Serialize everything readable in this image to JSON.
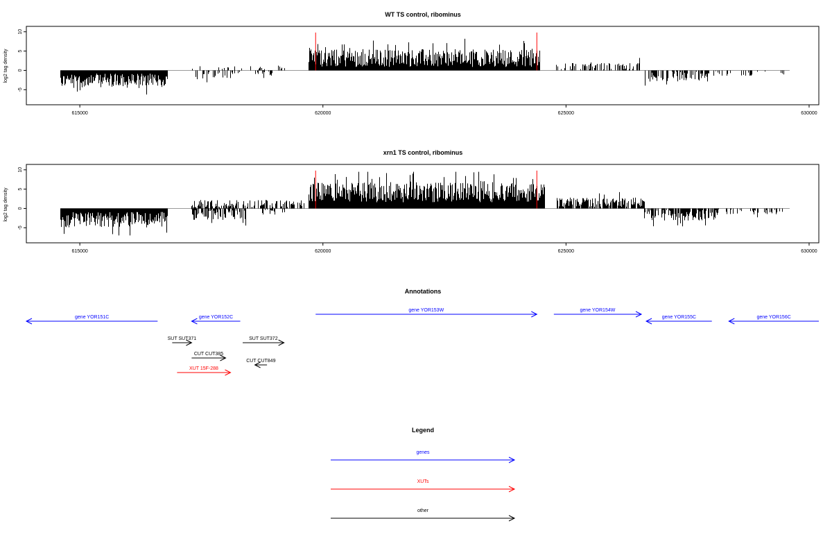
{
  "colors": {
    "gene": "#0000ff",
    "xut": "#ff0000",
    "other": "#000000",
    "marker": "#ff0000",
    "axis": "#000000",
    "zero": "#999999"
  },
  "chart_data": [
    {
      "type": "bar",
      "title": "WT TS control, ribominus",
      "xlabel": "",
      "ylabel": "log2 tag density",
      "xlim": [
        613900,
        630200
      ],
      "ylim": [
        -8,
        10.5
      ],
      "xticks": [
        615000,
        620000,
        625000,
        630000
      ],
      "xtick_labels": [
        "615000",
        "620000",
        "625000",
        "630000"
      ],
      "yticks": [
        10,
        5,
        0,
        -5
      ],
      "ytick_labels": [
        "10",
        "5",
        "0",
        "-5"
      ],
      "markers_x": [
        619850,
        624400
      ],
      "segments": [
        {
          "from": 614600,
          "to": 616800,
          "sign": -1,
          "mean": 2.6,
          "spread": 1.8,
          "density": 1.0
        },
        {
          "from": 617300,
          "to": 618300,
          "sign": -1,
          "mean": 1.2,
          "spread": 1.0,
          "density": 0.35
        },
        {
          "from": 617300,
          "to": 619200,
          "sign": 1,
          "mean": 0.6,
          "spread": 0.5,
          "density": 0.15
        },
        {
          "from": 618600,
          "to": 619000,
          "sign": -1,
          "mean": 0.8,
          "spread": 0.7,
          "density": 0.3
        },
        {
          "from": 619700,
          "to": 624450,
          "sign": 1,
          "mean": 3.2,
          "spread": 2.3,
          "density": 1.0
        },
        {
          "from": 624800,
          "to": 626500,
          "sign": 1,
          "mean": 1.1,
          "spread": 1.0,
          "density": 0.45
        },
        {
          "from": 626600,
          "to": 627900,
          "sign": -1,
          "mean": 1.6,
          "spread": 1.3,
          "density": 0.6
        },
        {
          "from": 627900,
          "to": 629500,
          "sign": -1,
          "mean": 0.8,
          "spread": 0.6,
          "density": 0.15
        }
      ]
    },
    {
      "type": "bar",
      "title": "xrn1 TS control, ribominus",
      "xlabel": "",
      "ylabel": "log2 tag density",
      "xlim": [
        613900,
        630200
      ],
      "ylim": [
        -8,
        10.5
      ],
      "xticks": [
        615000,
        620000,
        625000,
        630000
      ],
      "xtick_labels": [
        "615000",
        "620000",
        "625000",
        "630000"
      ],
      "yticks": [
        10,
        5,
        0,
        -5
      ],
      "ytick_labels": [
        "10",
        "5",
        "0",
        "-5"
      ],
      "markers_x": [
        619850,
        624400
      ],
      "segments": [
        {
          "from": 614600,
          "to": 616800,
          "sign": -1,
          "mean": 2.9,
          "spread": 2.0,
          "density": 1.0
        },
        {
          "from": 617300,
          "to": 618400,
          "sign": -1,
          "mean": 1.6,
          "spread": 1.4,
          "density": 0.7
        },
        {
          "from": 617300,
          "to": 619600,
          "sign": 1,
          "mean": 1.2,
          "spread": 1.0,
          "density": 0.55
        },
        {
          "from": 618700,
          "to": 619200,
          "sign": -1,
          "mean": 0.9,
          "spread": 0.7,
          "density": 0.4
        },
        {
          "from": 619700,
          "to": 624550,
          "sign": 1,
          "mean": 4.2,
          "spread": 2.6,
          "density": 1.0
        },
        {
          "from": 624800,
          "to": 626600,
          "sign": 1,
          "mean": 1.6,
          "spread": 1.2,
          "density": 0.8
        },
        {
          "from": 626600,
          "to": 628100,
          "sign": -1,
          "mean": 1.7,
          "spread": 1.4,
          "density": 0.75
        },
        {
          "from": 628100,
          "to": 629500,
          "sign": -1,
          "mean": 0.9,
          "spread": 0.7,
          "density": 0.3
        }
      ]
    }
  ],
  "annotations": {
    "title": "Annotations",
    "items": [
      {
        "label": "gene YOR151C",
        "kind": "gene",
        "dir": "left",
        "from": 613900,
        "to": 616600,
        "row": 0
      },
      {
        "label": "gene YOR152C",
        "kind": "gene",
        "dir": "left",
        "from": 617300,
        "to": 618300,
        "row": 0
      },
      {
        "label": "gene YOR153W",
        "kind": "gene",
        "dir": "right",
        "from": 619850,
        "to": 624400,
        "row": -1
      },
      {
        "label": "gene YOR154W",
        "kind": "gene",
        "dir": "right",
        "from": 624750,
        "to": 626550,
        "row": -1
      },
      {
        "label": "gene YOR155C",
        "kind": "gene",
        "dir": "left",
        "from": 626650,
        "to": 628000,
        "row": 0
      },
      {
        "label": "gene YOR156C",
        "kind": "gene",
        "dir": "left",
        "from": 628350,
        "to": 630200,
        "row": 0
      },
      {
        "label": "SUT SUT371",
        "kind": "other",
        "dir": "right",
        "from": 616900,
        "to": 617300,
        "row": 1
      },
      {
        "label": "SUT SUT372",
        "kind": "other",
        "dir": "right",
        "from": 618350,
        "to": 619200,
        "row": 1
      },
      {
        "label": "CUT CUT385",
        "kind": "other",
        "dir": "right",
        "from": 617300,
        "to": 618000,
        "row": 2
      },
      {
        "label": "CUT CUT849",
        "kind": "other",
        "dir": "left",
        "from": 618600,
        "to": 618850,
        "row": 3
      },
      {
        "label": "XUT 15F-288",
        "kind": "xut",
        "dir": "right",
        "from": 617000,
        "to": 618100,
        "row": 4
      }
    ]
  },
  "legend": {
    "title": "Legend",
    "items": [
      {
        "label": "genes",
        "kind": "gene"
      },
      {
        "label": "XUTs",
        "kind": "xut"
      },
      {
        "label": "other",
        "kind": "other"
      }
    ]
  }
}
